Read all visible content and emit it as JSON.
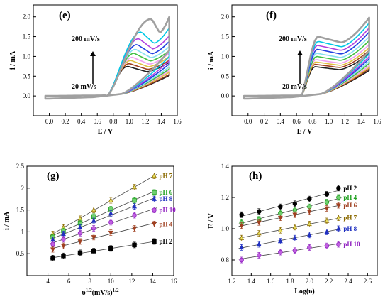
{
  "chart_data": [
    {
      "panel": "(e)",
      "type": "line",
      "xlabel": "E / V",
      "ylabel": "i / mA",
      "xlim": [
        -0.2,
        1.6
      ],
      "ylim": [
        -0.5,
        2.3
      ],
      "xticks": [
        "0.0",
        "0.2",
        "0.4",
        "0.6",
        "0.8",
        "1.0",
        "1.2",
        "1.4",
        "1.6"
      ],
      "yticks": [
        "0.0",
        "0.5",
        "1.0",
        "1.5",
        "2.0"
      ],
      "annotations": {
        "top": "200 mV/s",
        "bottom": "20 mV/s"
      },
      "series": [
        {
          "color": "#a0a0a0",
          "peak_E": 1.28,
          "peak_i": 1.95,
          "end_i": 2.0
        },
        {
          "color": "#00c8e6",
          "peak_E": 1.15,
          "peak_i": 1.62,
          "end_i": 1.72
        },
        {
          "color": "#b040e0",
          "peak_E": 1.12,
          "peak_i": 1.45,
          "end_i": 1.52
        },
        {
          "color": "#2040e0",
          "peak_E": 1.1,
          "peak_i": 1.3,
          "end_i": 1.38
        },
        {
          "color": "#88e0f0",
          "peak_E": 1.08,
          "peak_i": 1.18,
          "end_i": 1.25
        },
        {
          "color": "#40c040",
          "peak_E": 1.06,
          "peak_i": 1.08,
          "end_i": 1.15
        },
        {
          "color": "#f0a0f0",
          "peak_E": 1.04,
          "peak_i": 0.98,
          "end_i": 1.08
        },
        {
          "color": "#e0c040",
          "peak_E": 1.02,
          "peak_i": 0.9,
          "end_i": 1.0
        },
        {
          "color": "#a04020",
          "peak_E": 1.0,
          "peak_i": 0.82,
          "end_i": 0.9
        },
        {
          "color": "#202020",
          "peak_E": 0.98,
          "peak_i": 0.75,
          "end_i": 0.85
        }
      ]
    },
    {
      "panel": "(f)",
      "type": "line",
      "xlabel": "E / V",
      "ylabel": "i / mA",
      "xlim": [
        -0.2,
        1.6
      ],
      "ylim": [
        -0.5,
        2.3
      ],
      "xticks": [
        "0.0",
        "0.2",
        "0.4",
        "0.6",
        "0.8",
        "1.0",
        "1.2",
        "1.4",
        "1.6"
      ],
      "yticks": [
        "0.0",
        "0.5",
        "1.0",
        "1.5",
        "2.0"
      ],
      "annotations": {
        "top": "200 mV/s",
        "bottom": "20 mV/s"
      },
      "series": [
        {
          "color": "#a0a0a0",
          "peak_E": 0.87,
          "peak_i": 1.5,
          "end_i": 1.98
        },
        {
          "color": "#00c8e6",
          "peak_E": 0.87,
          "peak_i": 1.38,
          "end_i": 1.85
        },
        {
          "color": "#b040e0",
          "peak_E": 0.86,
          "peak_i": 1.28,
          "end_i": 1.72
        },
        {
          "color": "#2040e0",
          "peak_E": 0.86,
          "peak_i": 1.18,
          "end_i": 1.62
        },
        {
          "color": "#88e0f0",
          "peak_E": 0.85,
          "peak_i": 1.08,
          "end_i": 1.5
        },
        {
          "color": "#40c040",
          "peak_E": 0.85,
          "peak_i": 1.0,
          "end_i": 1.4
        },
        {
          "color": "#f0a0f0",
          "peak_E": 0.84,
          "peak_i": 0.92,
          "end_i": 1.3
        },
        {
          "color": "#e0c040",
          "peak_E": 0.84,
          "peak_i": 0.86,
          "end_i": 1.22
        },
        {
          "color": "#a04020",
          "peak_E": 0.83,
          "peak_i": 0.8,
          "end_i": 1.15
        },
        {
          "color": "#202020",
          "peak_E": 0.83,
          "peak_i": 0.74,
          "end_i": 1.08
        }
      ]
    },
    {
      "panel": "(g)",
      "type": "scatter",
      "xlabel_main": "υ",
      "xlabel_sup1": "1/2",
      "xlabel_mid": "(mV/s)",
      "xlabel_sup2": "1/2",
      "ylabel": "i / mA",
      "xlim": [
        2,
        16
      ],
      "ylim": [
        0,
        2.5
      ],
      "xticks": [
        "4",
        "6",
        "8",
        "10",
        "12",
        "14",
        "16"
      ],
      "yticks": [
        "0.5",
        "1",
        "1.5",
        "2",
        "2.5"
      ],
      "x": [
        4.47,
        5.48,
        7.07,
        8.37,
        10.0,
        12.25,
        14.14
      ],
      "series": [
        {
          "name": "pH 7",
          "color": "#8b6a00",
          "marker": "triangle",
          "fill": "#e8e060",
          "values": [
            0.95,
            1.1,
            1.3,
            1.5,
            1.72,
            2.02,
            2.28
          ]
        },
        {
          "name": "pH 6",
          "color": "#20a020",
          "marker": "square",
          "fill": "#70d070",
          "values": [
            0.88,
            1.02,
            1.2,
            1.35,
            1.52,
            1.72,
            1.9
          ]
        },
        {
          "name": "pH 8",
          "color": "#2030c0",
          "marker": "triangle",
          "fill": "#2030c0",
          "values": [
            0.82,
            0.95,
            1.1,
            1.25,
            1.42,
            1.58,
            1.75
          ]
        },
        {
          "name": "pH 10",
          "color": "#9020c0",
          "marker": "circle",
          "fill": "#c060e0",
          "values": [
            0.72,
            0.83,
            0.97,
            1.08,
            1.22,
            1.38,
            1.5
          ]
        },
        {
          "name": "pH 4",
          "color": "#a04020",
          "marker": "triangle-down",
          "fill": "#a04020",
          "values": [
            0.6,
            0.68,
            0.78,
            0.88,
            0.98,
            1.08,
            1.18
          ]
        },
        {
          "name": "pH 2",
          "color": "#000000",
          "marker": "square",
          "fill": "#000000",
          "values": [
            0.4,
            0.45,
            0.52,
            0.56,
            0.62,
            0.7,
            0.78
          ]
        }
      ]
    },
    {
      "panel": "(h)",
      "type": "scatter",
      "xlabel": "Log(υ)",
      "ylabel": "E / V",
      "xlim": [
        1.2,
        2.7
      ],
      "ylim": [
        0.7,
        1.4
      ],
      "xticks": [
        "1.2",
        "1.4",
        "1.6",
        "1.8",
        "2.0",
        "2.2",
        "2.4",
        "2.6"
      ],
      "yticks": [
        "0.8",
        "1.0",
        "1.2",
        "1.4"
      ],
      "x": [
        1.3,
        1.48,
        1.7,
        1.85,
        2.0,
        2.18,
        2.3
      ],
      "series": [
        {
          "name": "pH 2",
          "color": "#000000",
          "marker": "circle",
          "fill": "#000000",
          "values": [
            1.09,
            1.11,
            1.14,
            1.16,
            1.19,
            1.22,
            1.26
          ]
        },
        {
          "name": "pH 4",
          "color": "#20a020",
          "marker": "circle",
          "fill": "#70d070",
          "values": [
            1.04,
            1.06,
            1.1,
            1.12,
            1.14,
            1.17,
            1.2
          ]
        },
        {
          "name": "pH 6",
          "color": "#a04020",
          "marker": "triangle-down",
          "fill": "#a04020",
          "values": [
            1.02,
            1.04,
            1.07,
            1.09,
            1.11,
            1.13,
            1.15
          ]
        },
        {
          "name": "pH 7",
          "color": "#8b6a00",
          "marker": "triangle",
          "fill": "#e8e060",
          "values": [
            0.94,
            0.97,
            0.99,
            1.01,
            1.03,
            1.05,
            1.07
          ]
        },
        {
          "name": "pH 8",
          "color": "#2030c0",
          "marker": "triangle",
          "fill": "#2030c0",
          "values": [
            0.88,
            0.9,
            0.92,
            0.94,
            0.96,
            0.98,
            1.0
          ]
        },
        {
          "name": "pH 10",
          "color": "#9020c0",
          "marker": "circle",
          "fill": "#c060e0",
          "values": [
            0.8,
            0.83,
            0.85,
            0.86,
            0.88,
            0.89,
            0.9
          ]
        }
      ]
    }
  ]
}
